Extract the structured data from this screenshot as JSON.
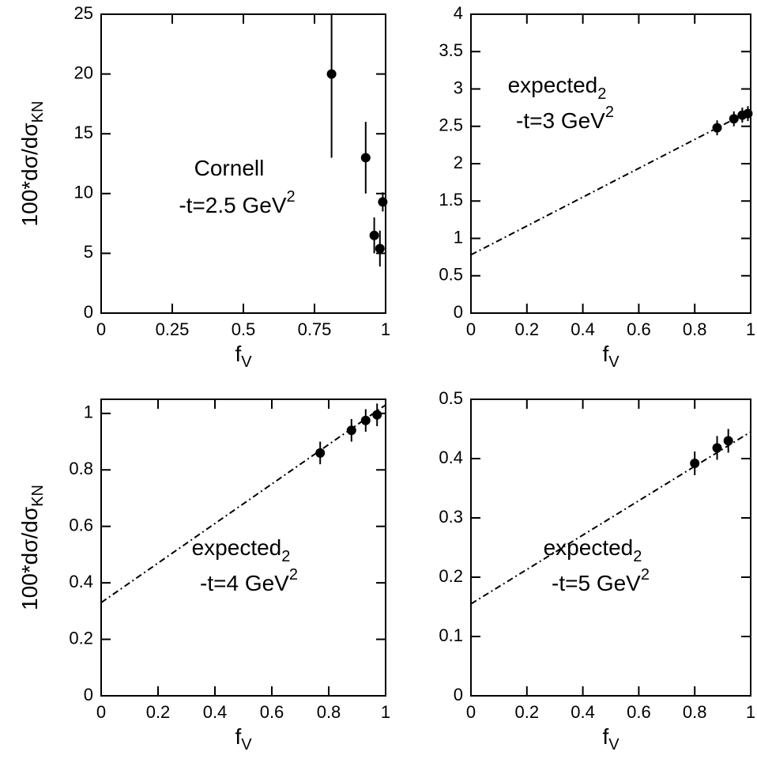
{
  "chart_data": [
    {
      "type": "scatter",
      "xlabel": "f",
      "xlabel_sub": "V",
      "ylabel": "100*dσ/dσ",
      "ylabel_sub": "KN",
      "annotation": [
        "Cornell",
        "-t=2.5 GeV"
      ],
      "annotation_sup": "2",
      "x": [
        0.81,
        0.93,
        0.96,
        0.98,
        0.99
      ],
      "values": [
        20,
        13,
        6.5,
        5.4,
        9.3
      ],
      "errors": [
        7,
        3,
        1.5,
        1.5,
        0.8
      ],
      "xlim": [
        0,
        1
      ],
      "xticks": [
        0,
        0.25,
        0.5,
        0.75,
        1
      ],
      "ylim": [
        0,
        25
      ],
      "yticks": [
        0,
        5,
        10,
        15,
        20,
        25
      ],
      "color": "#000000"
    },
    {
      "type": "scatter",
      "xlabel": "f",
      "xlabel_sub": "V",
      "annotation": [
        "expected",
        "-t=3 GeV"
      ],
      "annotation_sub": "2",
      "annotation_sup": "2",
      "x": [
        0.88,
        0.94,
        0.97,
        0.99
      ],
      "values": [
        2.48,
        2.6,
        2.65,
        2.67
      ],
      "errors": [
        0.1,
        0.1,
        0.1,
        0.1
      ],
      "fit": {
        "x": [
          0,
          1
        ],
        "y": [
          0.78,
          2.71
        ]
      },
      "xlim": [
        0,
        1
      ],
      "xticks": [
        0,
        0.2,
        0.4,
        0.6,
        0.8,
        1
      ],
      "ylim": [
        0,
        4
      ],
      "yticks": [
        0,
        0.5,
        1,
        1.5,
        2,
        2.5,
        3,
        3.5,
        4
      ],
      "color": "#000000"
    },
    {
      "type": "scatter",
      "xlabel": "f",
      "xlabel_sub": "V",
      "ylabel": "100*dσ/dσ",
      "ylabel_sub": "KN",
      "annotation": [
        "expected",
        "-t=4 GeV"
      ],
      "annotation_sub": "2",
      "annotation_sup": "2",
      "x": [
        0.77,
        0.88,
        0.93,
        0.97
      ],
      "values": [
        0.86,
        0.94,
        0.975,
        0.995
      ],
      "errors": [
        0.04,
        0.04,
        0.04,
        0.04
      ],
      "fit": {
        "x": [
          0,
          1
        ],
        "y": [
          0.33,
          1.03
        ]
      },
      "xlim": [
        0,
        1
      ],
      "xticks": [
        0,
        0.2,
        0.4,
        0.6,
        0.8,
        1
      ],
      "ylim": [
        0,
        1.05
      ],
      "yticks": [
        0,
        0.2,
        0.4,
        0.6,
        0.8,
        1
      ],
      "color": "#000000"
    },
    {
      "type": "scatter",
      "xlabel": "f",
      "xlabel_sub": "V",
      "annotation": [
        "expected",
        "-t=5 GeV"
      ],
      "annotation_sub": "2",
      "annotation_sup": "2",
      "x": [
        0.8,
        0.88,
        0.92
      ],
      "values": [
        0.392,
        0.418,
        0.43
      ],
      "errors": [
        0.02,
        0.02,
        0.02
      ],
      "fit": {
        "x": [
          0,
          1
        ],
        "y": [
          0.155,
          0.445
        ]
      },
      "xlim": [
        0,
        1
      ],
      "xticks": [
        0,
        0.2,
        0.4,
        0.6,
        0.8,
        1
      ],
      "ylim": [
        0,
        0.5
      ],
      "yticks": [
        0,
        0.1,
        0.2,
        0.3,
        0.4,
        0.5
      ],
      "color": "#000000"
    }
  ]
}
